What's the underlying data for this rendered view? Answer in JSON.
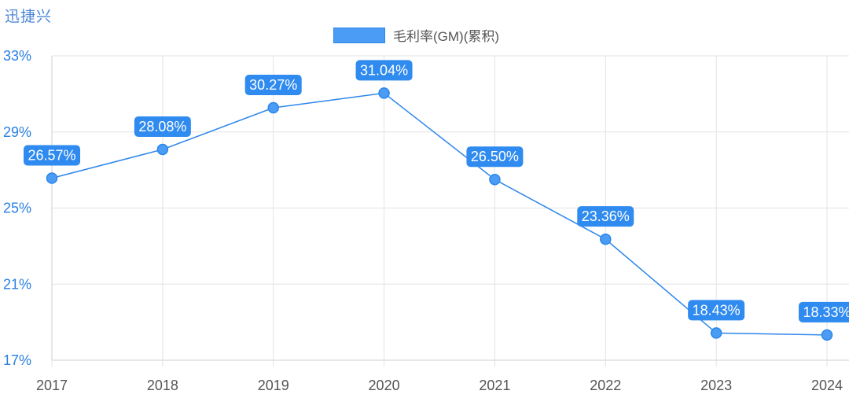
{
  "brand": "迅捷兴",
  "legend": {
    "label": "毛利率(GM)(累积)"
  },
  "colors": {
    "line": "#2d86ea",
    "point": "#4a9cf5",
    "label_bg": "#2f8bef",
    "grid": "#e3e3e3",
    "ytick": "#2b7fe0"
  },
  "chart_data": {
    "type": "line",
    "title": "",
    "xlabel": "",
    "ylabel": "",
    "categories": [
      "2017",
      "2018",
      "2019",
      "2020",
      "2021",
      "2022",
      "2023",
      "2024"
    ],
    "series": [
      {
        "name": "毛利率(GM)(累积)",
        "values": [
          26.57,
          28.08,
          30.27,
          31.04,
          26.5,
          23.36,
          18.43,
          18.33
        ],
        "labels": [
          "26.57%",
          "28.08%",
          "30.27%",
          "31.04%",
          "26.50%",
          "23.36%",
          "18.43%",
          "18.33%"
        ]
      }
    ],
    "ylim": [
      17,
      33
    ],
    "yticks": [
      17,
      21,
      25,
      29,
      33
    ],
    "ytick_labels": [
      "17%",
      "21%",
      "25%",
      "29%",
      "33%"
    ],
    "grid": true,
    "legend_position": "top-center"
  }
}
